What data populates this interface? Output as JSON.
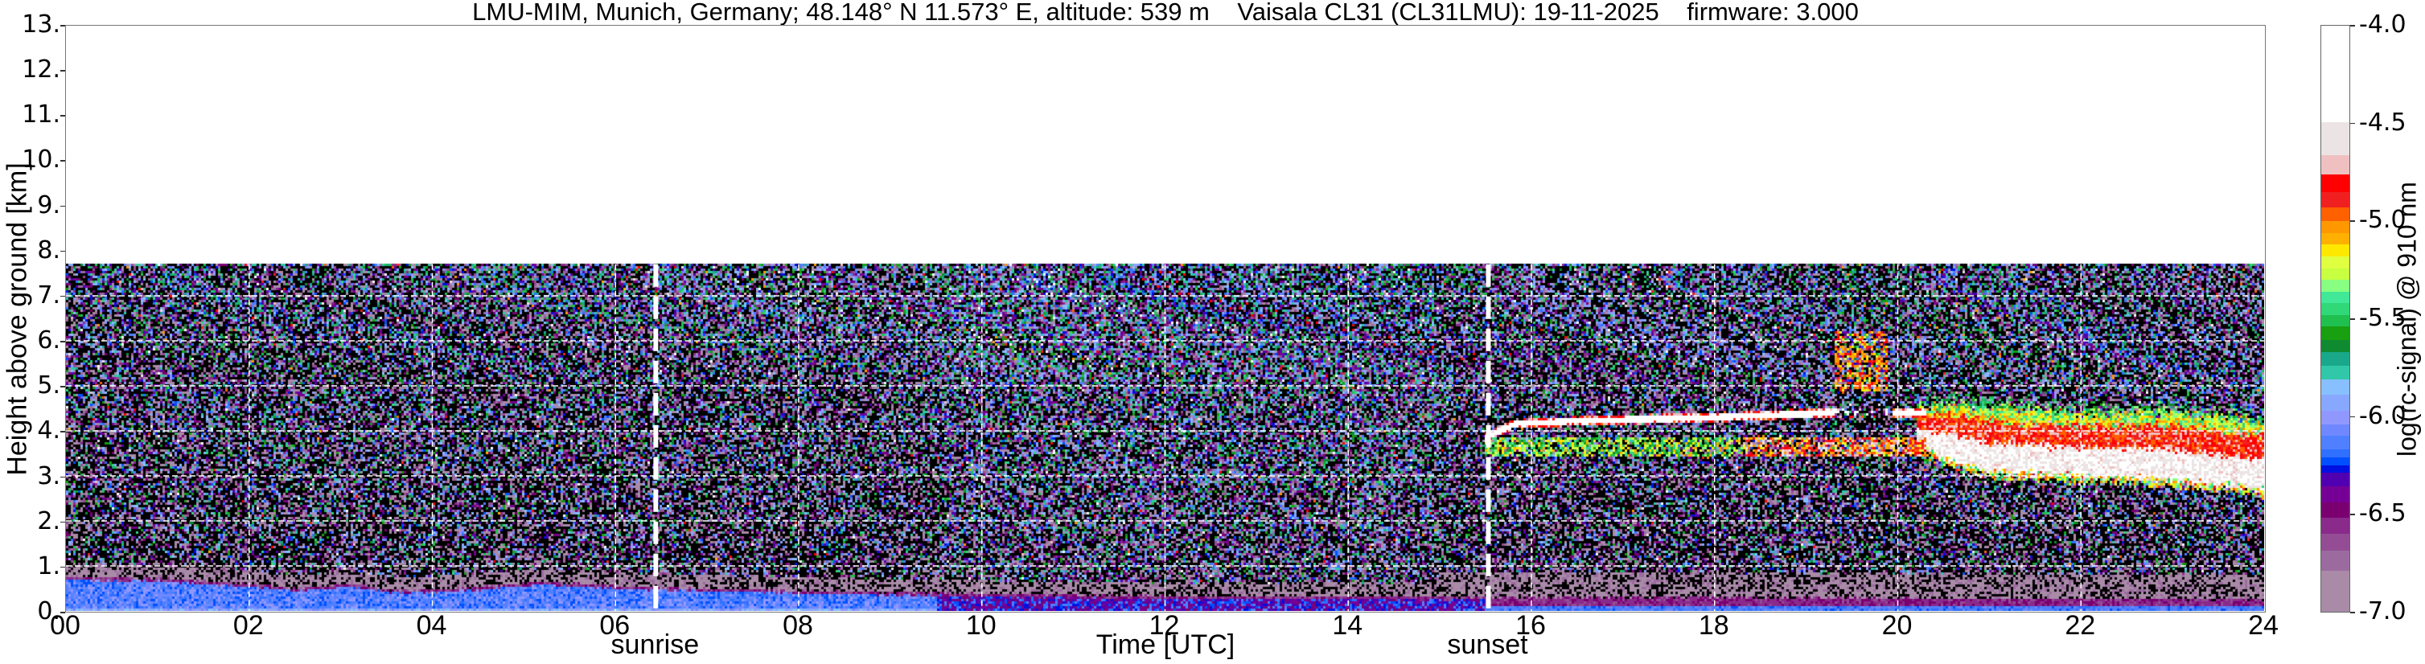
{
  "chart_data": {
    "type": "heatmap",
    "title": "LMU-MIM, Munich, Germany; 48.148° N 11.573° E, altitude: 539 m    Vaisala CL31 (CL31LMU): 19-11-2025    firmware: 3.000",
    "xlabel": "Time [UTC]",
    "ylabel": "Height above ground [km]",
    "xlim": [
      0,
      24
    ],
    "ylim": [
      0,
      13
    ],
    "xticks": [
      0,
      2,
      4,
      6,
      8,
      10,
      12,
      14,
      16,
      18,
      20,
      22,
      24
    ],
    "xtick_labels": [
      "00",
      "02",
      "04",
      "06",
      "08",
      "10",
      "12",
      "14",
      "16",
      "18",
      "20",
      "22",
      "24"
    ],
    "yticks": [
      0,
      1,
      2,
      3,
      4,
      5,
      6,
      7,
      8,
      9,
      10,
      11,
      12,
      13
    ],
    "ytick_labels": [
      "0.",
      "1.",
      "2.",
      "3.",
      "4.",
      "5.",
      "6.",
      "7.",
      "8.",
      "9.",
      "10.",
      "11.",
      "12.",
      "13."
    ],
    "grid": true,
    "data_top_km": 7.7,
    "annotations": [
      {
        "label": "sunrise",
        "time": 6.44,
        "style": "dashed-white"
      },
      {
        "label": "sunset",
        "time": 15.53,
        "style": "dashed-white"
      }
    ],
    "colorbar": {
      "label": "log(rc-signal) @ 910 nm",
      "range": [
        -7.0,
        -4.0
      ],
      "ticks": [
        -4.0,
        -4.5,
        -5.0,
        -5.5,
        -6.0,
        -6.5,
        -7.0
      ],
      "tick_labels": [
        "-4.0",
        "-4.5",
        "-5.0",
        "-5.5",
        "-6.0",
        "-6.5",
        "-7.0"
      ],
      "below_range_color": "#000000",
      "levels": [
        {
          "from": -7.0,
          "to": -6.79,
          "color": "#a98ba8"
        },
        {
          "from": -6.79,
          "to": -6.69,
          "color": "#9b6b9f"
        },
        {
          "from": -6.69,
          "to": -6.6,
          "color": "#944d94"
        },
        {
          "from": -6.6,
          "to": -6.52,
          "color": "#8a2a8a"
        },
        {
          "from": -6.52,
          "to": -6.44,
          "color": "#7a0070"
        },
        {
          "from": -6.44,
          "to": -6.36,
          "color": "#760095"
        },
        {
          "from": -6.36,
          "to": -6.29,
          "color": "#5000b0"
        },
        {
          "from": -6.29,
          "to": -6.25,
          "color": "#0010e0"
        },
        {
          "from": -6.25,
          "to": -6.21,
          "color": "#0050ff"
        },
        {
          "from": -6.21,
          "to": -6.17,
          "color": "#3070ff"
        },
        {
          "from": -6.17,
          "to": -6.1,
          "color": "#5080ff"
        },
        {
          "from": -6.1,
          "to": -6.04,
          "color": "#7088ff"
        },
        {
          "from": -6.04,
          "to": -5.97,
          "color": "#9098ff"
        },
        {
          "from": -5.97,
          "to": -5.89,
          "color": "#88a8ff"
        },
        {
          "from": -5.89,
          "to": -5.81,
          "color": "#88c0ff"
        },
        {
          "from": -5.81,
          "to": -5.74,
          "color": "#30c8a8"
        },
        {
          "from": -5.74,
          "to": -5.67,
          "color": "#1aa88a"
        },
        {
          "from": -5.67,
          "to": -5.61,
          "color": "#108a30"
        },
        {
          "from": -5.61,
          "to": -5.54,
          "color": "#18a010"
        },
        {
          "from": -5.54,
          "to": -5.48,
          "color": "#20c050"
        },
        {
          "from": -5.48,
          "to": -5.42,
          "color": "#30d878"
        },
        {
          "from": -5.42,
          "to": -5.36,
          "color": "#40e898"
        },
        {
          "from": -5.36,
          "to": -5.3,
          "color": "#88ff80"
        },
        {
          "from": -5.3,
          "to": -5.24,
          "color": "#c8ff40"
        },
        {
          "from": -5.24,
          "to": -5.18,
          "color": "#e0ff40"
        },
        {
          "from": -5.18,
          "to": -5.12,
          "color": "#ffe800"
        },
        {
          "from": -5.12,
          "to": -5.06,
          "color": "#ffb000"
        },
        {
          "from": -5.06,
          "to": -5.0,
          "color": "#ff9800"
        },
        {
          "from": -5.0,
          "to": -4.93,
          "color": "#ff6000"
        },
        {
          "from": -4.93,
          "to": -4.85,
          "color": "#f02020"
        },
        {
          "from": -4.85,
          "to": -4.76,
          "color": "#ff0000"
        },
        {
          "from": -4.76,
          "to": -4.66,
          "color": "#f0c0c0"
        },
        {
          "from": -4.66,
          "to": -4.49,
          "color": "#ece4e4"
        },
        {
          "from": -4.49,
          "to": -4.0,
          "color": "#ffffff"
        }
      ]
    },
    "features": {
      "boundary_layer_top_km": {
        "time": [
          0,
          1,
          2,
          2.5,
          3.1,
          3.6,
          4.2,
          5.2,
          6,
          7,
          8,
          10,
          12,
          14,
          16,
          18,
          20,
          22,
          24
        ],
        "height": [
          0.75,
          0.72,
          0.6,
          0.5,
          0.6,
          0.45,
          0.48,
          0.65,
          0.55,
          0.5,
          0.45,
          0.38,
          0.33,
          0.32,
          0.3,
          0.3,
          0.28,
          0.27,
          0.25
        ]
      },
      "cloud_layer_1": {
        "time": [
          15.5,
          15.8,
          16.5,
          18,
          19.2,
          20.3
        ],
        "height": [
          3.85,
          4.15,
          4.22,
          4.3,
          4.4,
          4.4
        ]
      },
      "cloud_layer_2": {
        "time": [
          20.2,
          20.5,
          21,
          22,
          23,
          23.5,
          24
        ],
        "top": [
          4.5,
          4.6,
          4.5,
          4.4,
          4.4,
          4.3,
          4.2
        ],
        "base": [
          3.7,
          3.4,
          3.1,
          3.0,
          2.9,
          2.8,
          2.7
        ]
      }
    }
  }
}
